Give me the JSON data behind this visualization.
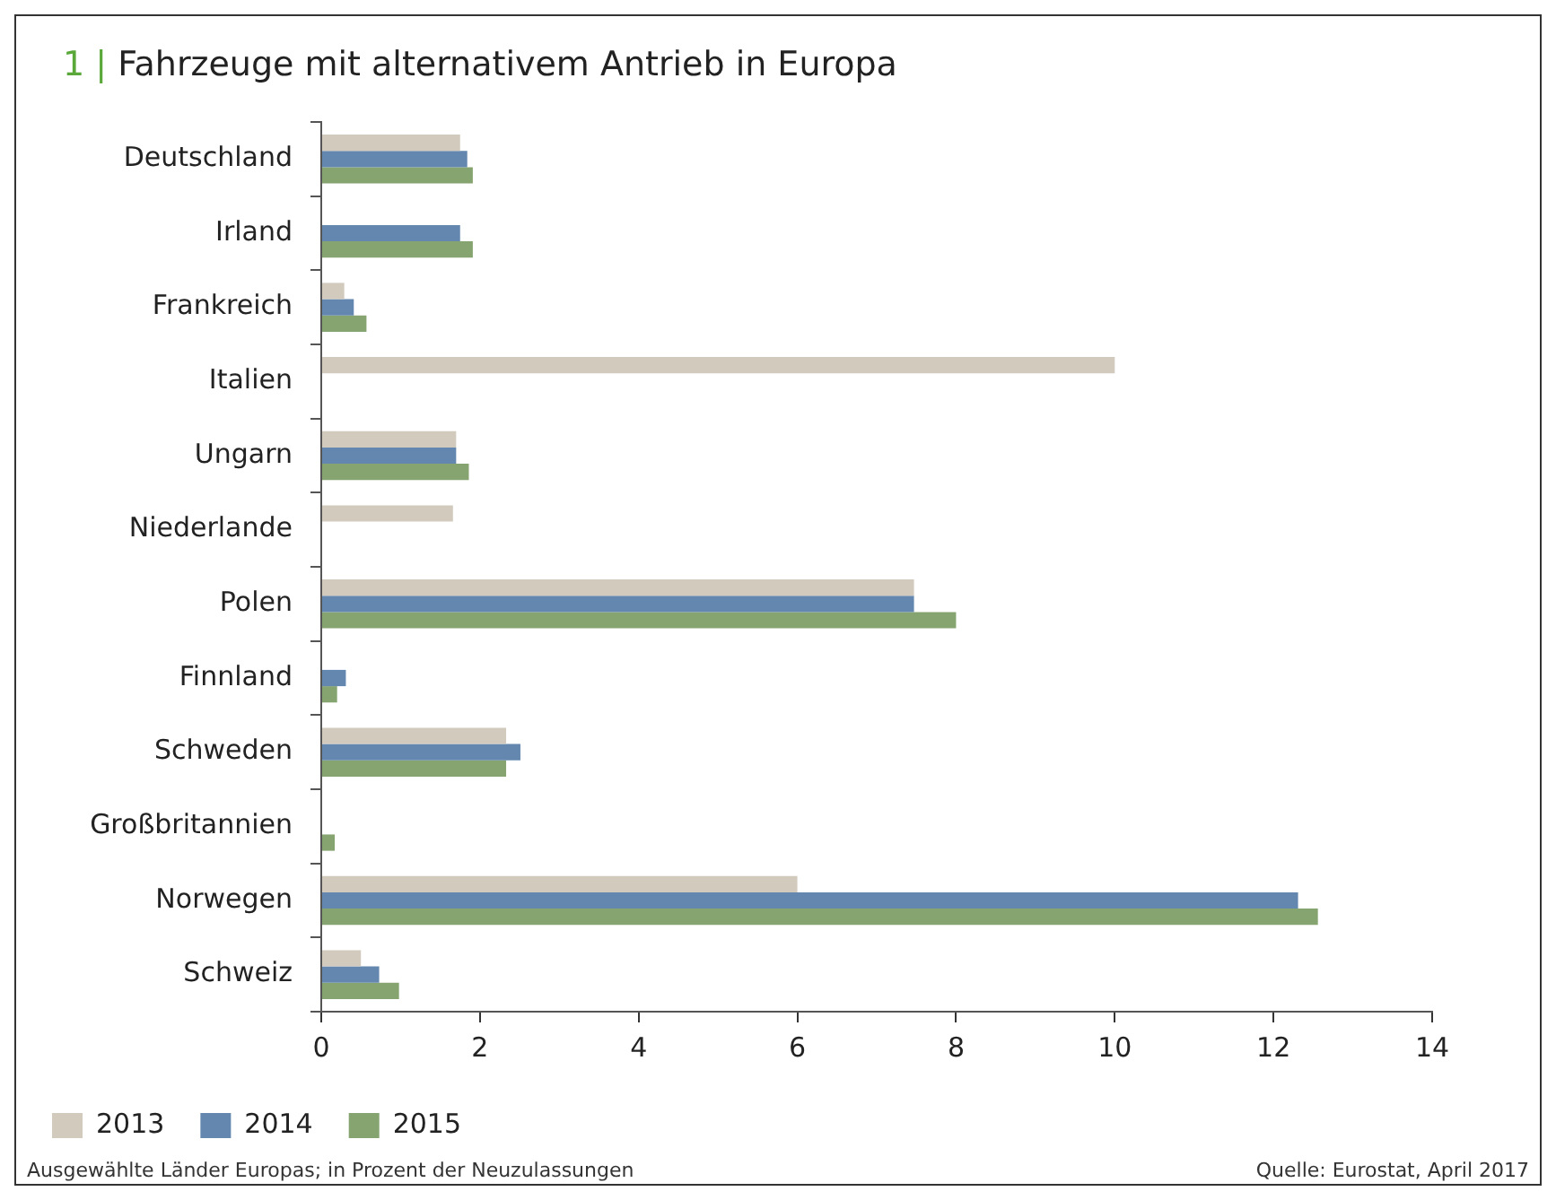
{
  "chart_data": {
    "type": "bar",
    "orientation": "horizontal",
    "title": "1 | Fahrzeuge mit alternativem Antrieb in Europa",
    "categories": [
      "Deutschland",
      "Irland",
      "Frankreich",
      "Italien",
      "Ungarn",
      "Niederlande",
      "Polen",
      "Finnland",
      "Schweden",
      "Großbritannien",
      "Norwegen",
      "Schweiz"
    ],
    "series": [
      {
        "name": "2013",
        "color": "#d2cbbd",
        "values": [
          1.75,
          null,
          0.29,
          10.0,
          1.7,
          1.66,
          7.47,
          null,
          2.33,
          null,
          6.0,
          0.5
        ]
      },
      {
        "name": "2014",
        "color": "#6387ae",
        "values": [
          1.84,
          1.75,
          0.41,
          null,
          1.7,
          null,
          7.47,
          0.31,
          2.51,
          null,
          12.31,
          0.73
        ]
      },
      {
        "name": "2015",
        "color": "#86a470",
        "values": [
          1.91,
          1.91,
          0.57,
          null,
          1.86,
          null,
          8.0,
          0.2,
          2.33,
          0.17,
          12.56,
          0.98
        ]
      }
    ],
    "xlim": [
      0,
      14
    ],
    "xticks": [
      0,
      2,
      4,
      6,
      8,
      10,
      12,
      14
    ],
    "grid": false,
    "legend": "bottom left",
    "annotations": [
      "Ausgewählte Länder Europas; in Prozent der Neuzulassungen",
      "Quelle: Eurostat, April 2017"
    ]
  }
}
